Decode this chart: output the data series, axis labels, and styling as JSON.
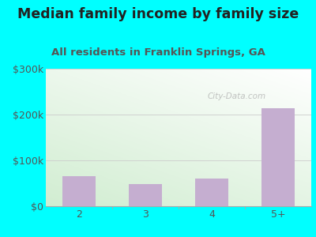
{
  "title": "Median family income by family size",
  "subtitle": "All residents in Franklin Springs, GA",
  "categories": [
    "2",
    "3",
    "4",
    "5+"
  ],
  "values": [
    65000,
    48000,
    60000,
    213000
  ],
  "bar_color": "#c5aed0",
  "ylim": [
    0,
    300000
  ],
  "yticks": [
    0,
    100000,
    200000,
    300000
  ],
  "ytick_labels": [
    "$0",
    "$100k",
    "$200k",
    "$300k"
  ],
  "title_fontsize": 12.5,
  "subtitle_fontsize": 9.5,
  "tick_fontsize": 9,
  "background_outer": "#00ffff",
  "bg_top_left": "#d4edd4",
  "bg_bottom_right": "#f5f5f0",
  "watermark": "City-Data.com",
  "grid_color": "#cccccc",
  "tick_color": "#555555",
  "title_color": "#222222",
  "subtitle_color": "#555555"
}
